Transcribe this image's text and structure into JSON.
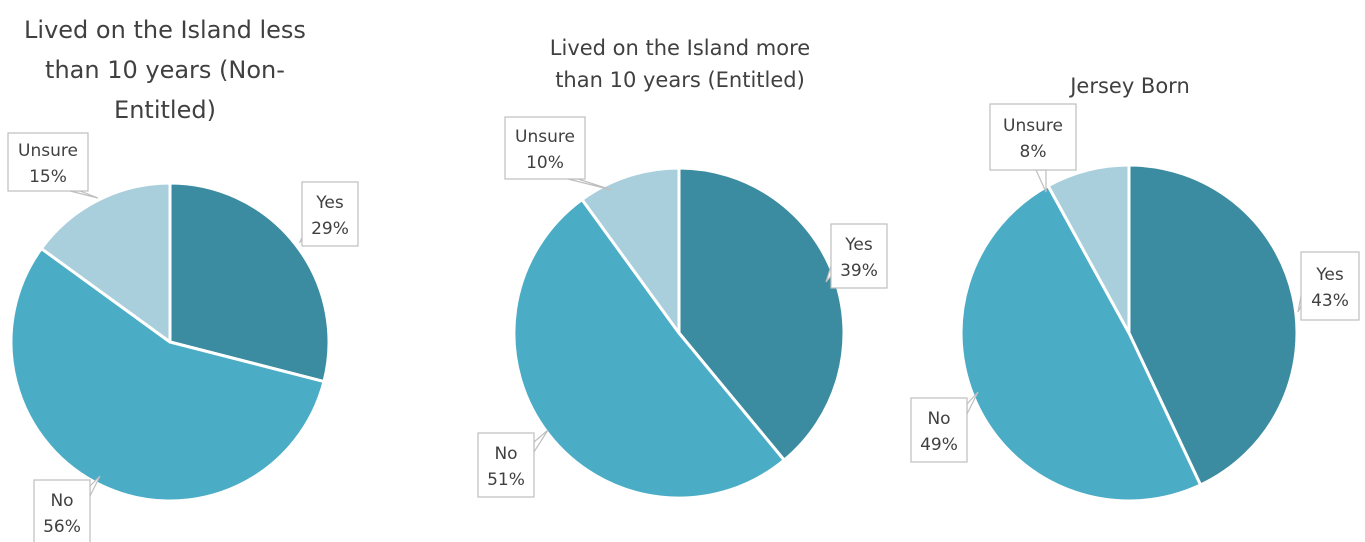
{
  "chart_data": [
    {
      "type": "pie",
      "title": "Lived on the Island less than 10 years (Non-Entitled)",
      "title_lines": [
        "Lived on the Island less",
        "than 10 years (Non-",
        "Entitled)"
      ],
      "categories": [
        "Yes",
        "No",
        "Unsure"
      ],
      "values": [
        29,
        56,
        15
      ],
      "value_labels": [
        "29%",
        "56%",
        "15%"
      ],
      "colors": [
        "#3B8BA1",
        "#4BACC6",
        "#A9CFDC"
      ]
    },
    {
      "type": "pie",
      "title": "Lived on the Island more than 10 years (Entitled)",
      "title_lines": [
        "Lived on the Island more",
        "than 10 years (Entitled)"
      ],
      "categories": [
        "Yes",
        "No",
        "Unsure"
      ],
      "values": [
        39,
        51,
        10
      ],
      "value_labels": [
        "39%",
        "51%",
        "10%"
      ],
      "colors": [
        "#3B8BA1",
        "#4BACC6",
        "#A9CFDC"
      ]
    },
    {
      "type": "pie",
      "title": "Jersey Born",
      "title_lines": [
        "Jersey Born"
      ],
      "categories": [
        "Yes",
        "No",
        "Unsure"
      ],
      "values": [
        43,
        49,
        8
      ],
      "value_labels": [
        "43%",
        "49%",
        "8%"
      ],
      "colors": [
        "#3B8BA1",
        "#4BACC6",
        "#A9CFDC"
      ]
    }
  ]
}
